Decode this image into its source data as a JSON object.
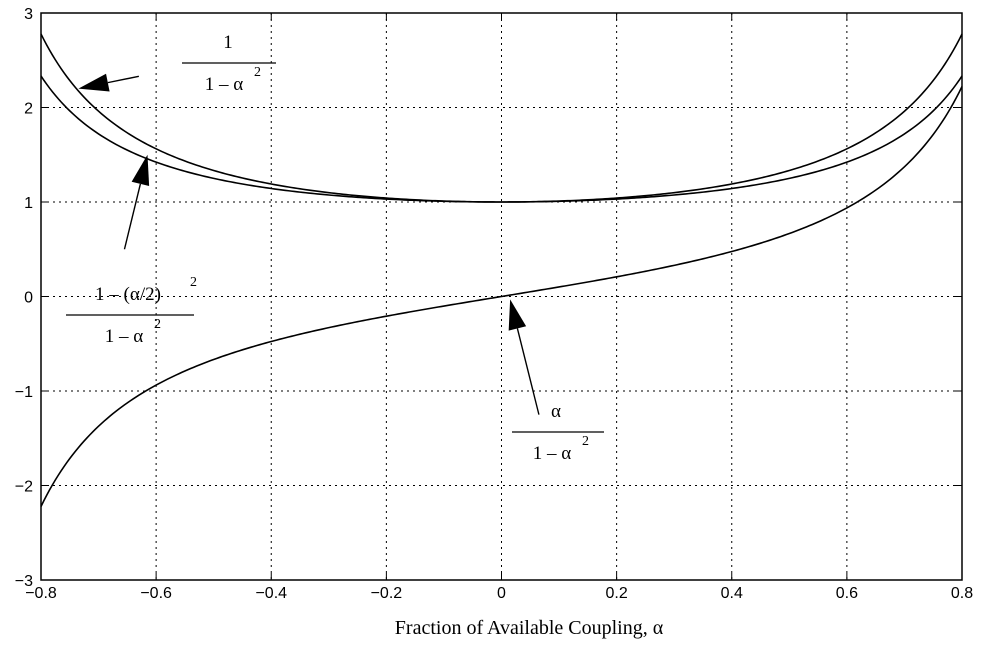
{
  "chart_data": {
    "type": "line",
    "title": "",
    "xlabel": "Fraction of Available Coupling, α",
    "ylabel": "",
    "xlim": [
      -0.8,
      0.8
    ],
    "ylim": [
      -3,
      3
    ],
    "grid": true,
    "x_ticks": [
      "-0.8",
      "-0.6",
      "-0.4",
      "-0.2",
      "0",
      "0.2",
      "0.4",
      "0.6",
      "0.8"
    ],
    "y_ticks": [
      "-3",
      "-2",
      "-1",
      "0",
      "1",
      "2",
      "3"
    ],
    "x": [
      -0.8,
      -0.7,
      -0.6,
      -0.5,
      -0.4,
      -0.3,
      -0.2,
      -0.1,
      0,
      0.1,
      0.2,
      0.3,
      0.4,
      0.5,
      0.6,
      0.7,
      0.8
    ],
    "series": [
      {
        "values": [
          2.778,
          1.961,
          1.563,
          1.333,
          1.19,
          1.099,
          1.042,
          1.01,
          1.0,
          1.01,
          1.042,
          1.099,
          1.19,
          1.333,
          1.563,
          1.961,
          2.778
        ],
        "label_lines": {
          "numerator": "1",
          "denominator": "1 – α",
          "exponent": "2"
        }
      },
      {
        "values": [
          2.333,
          1.721,
          1.422,
          1.25,
          1.143,
          1.074,
          1.031,
          1.008,
          1.0,
          1.008,
          1.031,
          1.074,
          1.143,
          1.25,
          1.422,
          1.721,
          2.333
        ],
        "label_lines": {
          "numerator": "1 – (α/2)",
          "numerator_exponent": "2",
          "denominator": "1 – α",
          "exponent": "2"
        }
      },
      {
        "values": [
          -2.222,
          -1.373,
          -0.938,
          -0.667,
          -0.476,
          -0.33,
          -0.208,
          -0.101,
          0.0,
          0.101,
          0.208,
          0.33,
          0.476,
          0.667,
          0.938,
          1.373,
          2.222
        ],
        "label_lines": {
          "numerator": "α",
          "denominator": "1 – α",
          "exponent": "2"
        }
      }
    ],
    "annotations": [
      {
        "series": 0,
        "arrow_from": [
          -0.63,
          2.33
        ],
        "arrow_to": [
          -0.735,
          2.2
        ]
      },
      {
        "series": 1,
        "arrow_from": [
          -0.655,
          0.5
        ],
        "arrow_to": [
          -0.615,
          1.5
        ]
      },
      {
        "series": 2,
        "arrow_from": [
          0.065,
          -1.25
        ],
        "arrow_to": [
          0.015,
          -0.03
        ]
      }
    ]
  }
}
